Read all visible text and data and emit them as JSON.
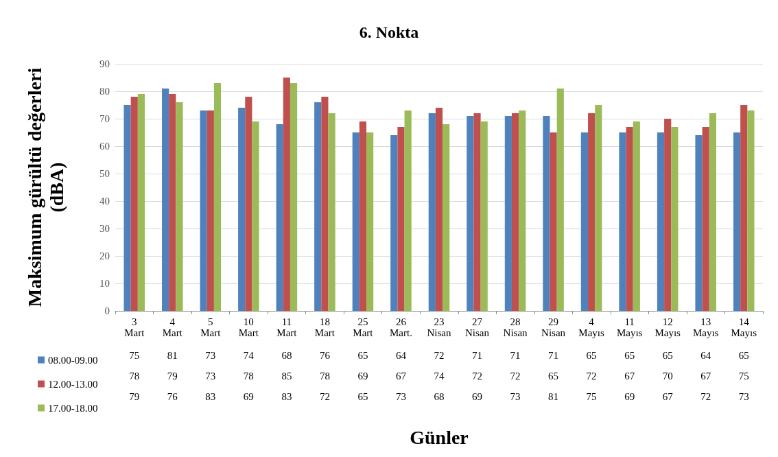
{
  "chart_data": {
    "type": "bar",
    "title": "6. Nokta",
    "xlabel": "Günler",
    "ylabel": "Maksimum gürültü değerleri (dBA)",
    "categories": [
      "3 Mart",
      "4 Mart",
      "5 Mart",
      "10 Mart",
      "11 Mart",
      "18 Mart",
      "25 Mart",
      "26 Mart.",
      "23 Nisan",
      "27 Nisan",
      "28 Nisan",
      "29 Nisan",
      "4 Mayıs",
      "11 Mayıs",
      "12 Mayıs",
      "13 Mayıs",
      "14 Mayıs"
    ],
    "series": [
      {
        "name": "08.00-09.00",
        "color": "#4f81bd",
        "values": [
          75,
          81,
          73,
          74,
          68,
          76,
          65,
          64,
          72,
          71,
          71,
          71,
          65,
          65,
          65,
          64,
          65
        ]
      },
      {
        "name": "12.00-13.00",
        "color": "#c0504d",
        "values": [
          78,
          79,
          73,
          78,
          85,
          78,
          69,
          67,
          74,
          72,
          72,
          65,
          72,
          67,
          70,
          67,
          75
        ]
      },
      {
        "name": "17.00-18.00",
        "color": "#9bbb59",
        "values": [
          79,
          76,
          83,
          69,
          83,
          72,
          65,
          73,
          68,
          69,
          73,
          81,
          75,
          69,
          67,
          72,
          73
        ]
      }
    ],
    "ylim": [
      0,
      90
    ],
    "yticks": [
      0,
      10,
      20,
      30,
      40,
      50,
      60,
      70,
      80,
      90
    ],
    "grid": "y",
    "legend": "bottom left",
    "data_labels": true
  }
}
